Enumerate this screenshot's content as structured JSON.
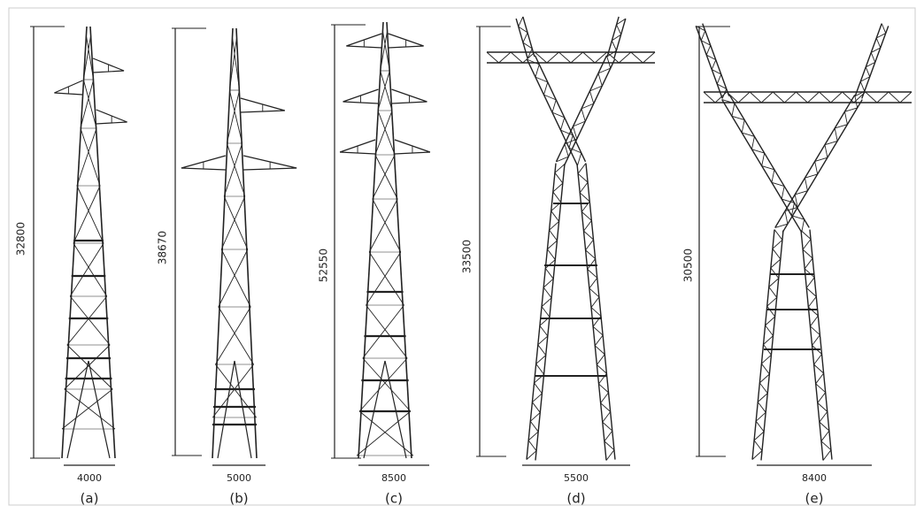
{
  "towers": [
    {
      "caption": "(a)",
      "height": "32800",
      "width": "4000"
    },
    {
      "caption": "(b)",
      "height": "38670",
      "width": "5000"
    },
    {
      "caption": "(c)",
      "height": "52550",
      "width": "8500"
    },
    {
      "caption": "(d)",
      "height": "33500",
      "width": "5500"
    },
    {
      "caption": "(e)",
      "height": "30500",
      "width": "8400"
    }
  ]
}
